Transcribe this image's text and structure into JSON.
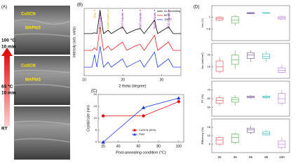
{
  "panel_a": {
    "label": "(A)",
    "layers": [
      [
        "CuSCN",
        "MAPbI3"
      ],
      [
        "CuSCN",
        "MAPbI3"
      ]
    ],
    "conditions": [
      [
        "100 °C",
        "10 min"
      ],
      [
        "65 °C",
        "10 min"
      ],
      [
        "RT"
      ]
    ]
  },
  "chart_data": [
    {
      "type": "line",
      "panel": "(B)",
      "xlabel": "2 theta (degree)",
      "ylabel": "Intensity (arb. units)",
      "xlim": [
        10,
        35
      ],
      "xticks": [
        10,
        20,
        30
      ],
      "ylim": [
        2,
        10
      ],
      "x": [
        10,
        12,
        12.7,
        13.3,
        14.1,
        15,
        16.2,
        17,
        19.9,
        21,
        23.5,
        24.5,
        25.5,
        28.2,
        29,
        31.8,
        33,
        35
      ],
      "series": [
        {
          "name": "no-annealing",
          "color": "#000000",
          "values": [
            7,
            7,
            7.1,
            7,
            9.8,
            7,
            7.4,
            7,
            7.8,
            7,
            7.5,
            7.6,
            7,
            8.6,
            7,
            7.8,
            7,
            7
          ]
        },
        {
          "name": "65°C",
          "color": "#e02020",
          "values": [
            5,
            5,
            5.3,
            5,
            7.8,
            5,
            5.5,
            5,
            6,
            5,
            5.6,
            5.7,
            5,
            6.8,
            5,
            6,
            5,
            5
          ]
        },
        {
          "name": "100°C",
          "color": "#2040e0",
          "values": [
            3,
            3,
            4.5,
            3,
            5.5,
            3,
            3.6,
            3,
            4,
            3,
            3.6,
            3.8,
            3,
            4.8,
            3,
            4,
            3,
            3
          ]
        }
      ],
      "annotations": [
        {
          "x": 12.7,
          "label": "PbI2",
          "color": "#c8a000"
        },
        {
          "x": 14.1,
          "label": "MAPbI3 (110)",
          "color": "#8000a0"
        },
        {
          "x": 16.2,
          "label": "CuSCN (003)",
          "color": "#c8a000"
        },
        {
          "x": 19.9,
          "label": "MAPbI3 (112)",
          "color": "#8000a0"
        },
        {
          "x": 24.5,
          "label": "MAPbI3 (202)",
          "color": "#8000a0"
        },
        {
          "x": 28.2,
          "label": "MAPbI3 (220)",
          "color": "#8000a0"
        },
        {
          "x": 31.8,
          "label": "MAPbI3 (310)",
          "color": "#8000a0"
        }
      ]
    },
    {
      "type": "line",
      "panel": "(C)",
      "xlabel": "Post-annealing condition (°C)",
      "ylabel": "Crystal size (nm)",
      "xlim": [
        20,
        105
      ],
      "xticks": [
        25,
        40,
        60,
        80,
        100
      ],
      "ylim": [
        0,
        20
      ],
      "yticks": [
        0,
        5,
        10,
        15,
        20
      ],
      "x": [
        25,
        65,
        100
      ],
      "series": [
        {
          "name": "CuSCN (003)",
          "color": "#e01010",
          "marker": "circle",
          "values": [
            11,
            11,
            17
          ]
        },
        {
          "name": "PbI2",
          "color": "#1030e0",
          "marker": "triangle",
          "values": [
            0,
            14.5,
            18.5
          ]
        }
      ]
    },
    {
      "type": "box",
      "panel": "(D)",
      "ylabel": "Voc (V)",
      "ylim": [
        0.6,
        1.2
      ],
      "yticks": [
        0.8,
        1.0
      ],
      "colors": [
        "#e06060",
        "#5cb85c",
        "#8060a0",
        "#40c0c0",
        "#c080e0"
      ],
      "boxes": [
        [
          0.93,
          0.95,
          0.98,
          1.0,
          1.02
        ],
        [
          0.86,
          0.9,
          0.95,
          1.01,
          1.04
        ],
        [
          1.05,
          1.06,
          1.07,
          1.08,
          1.09
        ],
        [
          1.06,
          1.07,
          1.07,
          1.08,
          1.08
        ],
        [
          0.95,
          0.97,
          0.99,
          1.01,
          1.03
        ]
      ]
    },
    {
      "type": "box",
      "ylabel": "Jsc (mA/cm²)",
      "ylim": [
        10,
        25
      ],
      "yticks": [
        15,
        20
      ],
      "colors": [
        "#e06060",
        "#5cb85c",
        "#8060a0",
        "#40c0c0",
        "#c080e0"
      ],
      "boxes": [
        [
          12,
          13,
          15,
          17.5,
          19
        ],
        [
          14,
          16,
          18,
          20,
          22
        ],
        [
          17,
          18.5,
          20,
          21,
          22
        ],
        [
          17,
          18.5,
          19.5,
          20.5,
          21.5
        ],
        [
          12,
          12.5,
          13.5,
          14.5,
          16
        ]
      ]
    },
    {
      "type": "box",
      "ylabel": "FF (%)",
      "ylim": [
        40,
        80
      ],
      "yticks": [
        50,
        60,
        70
      ],
      "colors": [
        "#e06060",
        "#5cb85c",
        "#8060a0",
        "#40c0c0",
        "#c080e0"
      ],
      "boxes": [
        [
          52,
          55,
          58,
          61,
          64
        ],
        [
          52,
          56,
          59,
          61,
          64
        ],
        [
          60,
          61,
          62,
          63,
          64
        ],
        [
          60,
          61,
          62,
          63,
          65
        ],
        [
          52,
          55,
          60,
          66,
          70
        ]
      ]
    },
    {
      "type": "box",
      "ylabel": "Efficiency (%)",
      "ylim": [
        0,
        20
      ],
      "yticks": [
        5,
        10,
        15
      ],
      "colors": [
        "#e06060",
        "#5cb85c",
        "#8060a0",
        "#40c0c0",
        "#c080e0"
      ],
      "categories": [
        "25",
        "45",
        "65",
        "85",
        "100"
      ],
      "boxes": [
        [
          4,
          5,
          7.5,
          9,
          10
        ],
        [
          5,
          6,
          9,
          11,
          12
        ],
        [
          11,
          12,
          13.5,
          14.5,
          16
        ],
        [
          10,
          10.5,
          11.5,
          12.5,
          13.5
        ],
        [
          2,
          3,
          5,
          7,
          9
        ]
      ]
    }
  ]
}
